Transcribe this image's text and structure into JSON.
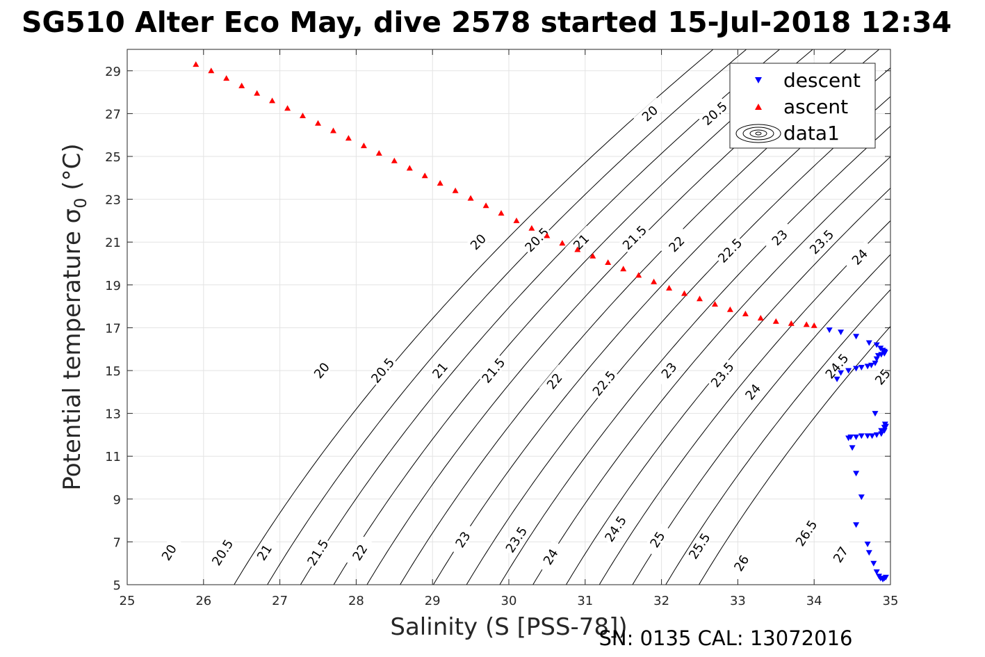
{
  "chart_data": {
    "type": "scatter",
    "title": "SG510 Alter Eco May, dive 2578 started 15-Jul-2018 12:34",
    "xlabel": "Salinity (S [PSS-78])",
    "ylabel": "Potential temperature σ",
    "ylabel_subscript": "0",
    "ylabel_suffix": " (°C)",
    "footer": "SN: 0135  CAL: 13072016",
    "xlim": [
      25,
      35
    ],
    "ylim": [
      5,
      30
    ],
    "xticks": [
      25,
      26,
      27,
      28,
      29,
      30,
      31,
      32,
      33,
      34,
      35
    ],
    "yticks": [
      5,
      7,
      9,
      11,
      13,
      15,
      17,
      19,
      21,
      23,
      25,
      27,
      29
    ],
    "grid": true,
    "legend": {
      "position": "top-right",
      "entries": [
        {
          "label": "descent",
          "marker": "triangle-down",
          "color": "#0000ff"
        },
        {
          "label": "ascent",
          "marker": "triangle-up",
          "color": "#ff0000"
        },
        {
          "label": "data1",
          "marker": "contour",
          "color": "#000000"
        }
      ]
    },
    "contours": {
      "name": "data1",
      "color": "#000000",
      "levels": [
        20,
        20.5,
        21,
        21.5,
        22,
        22.5,
        23,
        23.5,
        24,
        24.5,
        25,
        25.5,
        26,
        26.5,
        27
      ],
      "labels": [
        {
          "text": "20",
          "s": 25.55,
          "t": 6.5
        },
        {
          "text": "20.5",
          "s": 26.25,
          "t": 6.5
        },
        {
          "text": "21",
          "s": 26.8,
          "t": 6.5
        },
        {
          "text": "21.5",
          "s": 27.5,
          "t": 6.5
        },
        {
          "text": "22",
          "s": 28.05,
          "t": 6.5
        },
        {
          "text": "23",
          "s": 29.4,
          "t": 7.1
        },
        {
          "text": "23.5",
          "s": 30.1,
          "t": 7.1
        },
        {
          "text": "24",
          "s": 30.55,
          "t": 6.3
        },
        {
          "text": "24.5",
          "s": 31.4,
          "t": 7.6
        },
        {
          "text": "25",
          "s": 31.95,
          "t": 7.1
        },
        {
          "text": "25.5",
          "s": 32.5,
          "t": 6.8
        },
        {
          "text": "26",
          "s": 33.05,
          "t": 6.0
        },
        {
          "text": "26.5",
          "s": 33.9,
          "t": 7.4
        },
        {
          "text": "27",
          "s": 34.35,
          "t": 6.4
        },
        {
          "text": "20",
          "s": 27.55,
          "t": 15.0
        },
        {
          "text": "20.5",
          "s": 28.35,
          "t": 15.0
        },
        {
          "text": "21",
          "s": 29.1,
          "t": 15.0
        },
        {
          "text": "21.5",
          "s": 29.8,
          "t": 15.0
        },
        {
          "text": "22",
          "s": 30.6,
          "t": 14.5
        },
        {
          "text": "22.5",
          "s": 31.25,
          "t": 14.4
        },
        {
          "text": "23",
          "s": 32.1,
          "t": 15.0
        },
        {
          "text": "23.5",
          "s": 32.8,
          "t": 14.8
        },
        {
          "text": "24",
          "s": 33.2,
          "t": 14.0
        },
        {
          "text": "24.5",
          "s": 34.3,
          "t": 15.2
        },
        {
          "text": "25",
          "s": 34.9,
          "t": 14.7
        },
        {
          "text": "25.5",
          "s": 35.45,
          "t": 14.3
        },
        {
          "text": "26",
          "s": 35.7,
          "t": 13.4
        },
        {
          "text": "20",
          "s": 29.6,
          "t": 21.0
        },
        {
          "text": "20.5",
          "s": 30.37,
          "t": 21.1
        },
        {
          "text": "21",
          "s": 30.95,
          "t": 21.0
        },
        {
          "text": "21.5",
          "s": 31.65,
          "t": 21.2
        },
        {
          "text": "22",
          "s": 32.2,
          "t": 20.9
        },
        {
          "text": "22.5",
          "s": 32.9,
          "t": 20.6
        },
        {
          "text": "23",
          "s": 33.55,
          "t": 21.2
        },
        {
          "text": "23.5",
          "s": 34.1,
          "t": 21.0
        },
        {
          "text": "24",
          "s": 34.6,
          "t": 20.3
        },
        {
          "text": "20",
          "s": 31.85,
          "t": 27.0
        },
        {
          "text": "20.5",
          "s": 32.7,
          "t": 27.0
        },
        {
          "text": "21",
          "s": 33.3,
          "t": 27.0
        }
      ]
    },
    "series": [
      {
        "name": "descent",
        "marker": "triangle-down",
        "color": "#0000ff",
        "x": [
          34.2,
          34.35,
          34.55,
          34.72,
          34.82,
          34.87,
          34.9,
          34.92,
          34.93,
          34.92,
          34.88,
          34.84,
          34.82,
          34.8,
          34.75,
          34.7,
          34.62,
          34.55,
          34.45,
          34.35,
          34.3,
          34.8,
          34.88,
          34.92,
          34.93,
          34.94,
          34.92,
          34.88,
          34.82,
          34.76,
          34.7,
          34.62,
          34.55,
          34.48,
          34.45,
          34.5,
          34.55,
          34.62,
          34.55,
          34.7,
          34.72,
          34.78,
          34.82,
          34.85,
          34.87,
          34.9,
          34.92,
          34.94
        ],
        "y": [
          16.9,
          16.8,
          16.6,
          16.3,
          16.2,
          16.05,
          15.95,
          15.9,
          15.85,
          15.8,
          15.75,
          15.7,
          15.55,
          15.35,
          15.25,
          15.2,
          15.15,
          15.1,
          15.0,
          14.9,
          14.6,
          13.0,
          12.2,
          12.35,
          12.5,
          12.4,
          12.2,
          12.05,
          12.0,
          11.95,
          11.95,
          11.95,
          11.9,
          11.9,
          11.85,
          11.4,
          10.2,
          9.1,
          7.8,
          6.9,
          6.5,
          6.0,
          5.6,
          5.4,
          5.3,
          5.25,
          5.3,
          5.35
        ]
      },
      {
        "name": "ascent",
        "marker": "triangle-up",
        "color": "#ff0000",
        "x": [
          25.9,
          26.1,
          26.3,
          26.5,
          26.7,
          26.9,
          27.1,
          27.3,
          27.5,
          27.7,
          27.9,
          28.1,
          28.3,
          28.5,
          28.7,
          28.9,
          29.1,
          29.3,
          29.5,
          29.7,
          29.9,
          30.1,
          30.3,
          30.5,
          30.7,
          30.9,
          31.1,
          31.3,
          31.5,
          31.7,
          31.9,
          32.1,
          32.3,
          32.5,
          32.7,
          32.9,
          33.1,
          33.3,
          33.5,
          33.7,
          33.9,
          34.0
        ],
        "y": [
          29.3,
          29.0,
          28.65,
          28.3,
          27.95,
          27.6,
          27.25,
          26.9,
          26.55,
          26.2,
          25.85,
          25.5,
          25.15,
          24.8,
          24.45,
          24.1,
          23.75,
          23.4,
          23.05,
          22.7,
          22.35,
          22.0,
          21.65,
          21.3,
          20.95,
          20.65,
          20.35,
          20.05,
          19.75,
          19.45,
          19.15,
          18.85,
          18.6,
          18.35,
          18.1,
          17.85,
          17.65,
          17.45,
          17.3,
          17.2,
          17.15,
          17.1
        ]
      }
    ]
  }
}
